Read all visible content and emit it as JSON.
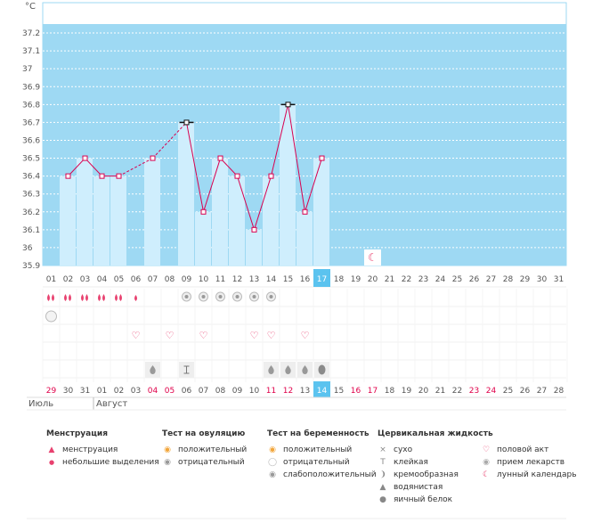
{
  "chart_data": {
    "type": "line",
    "unit_label": "°C",
    "ylim": [
      35.9,
      37.25
    ],
    "y_ticks": [
      "37.2",
      "37.1",
      "37",
      "36.9",
      "36.8",
      "36.7",
      "36.6",
      "36.5",
      "36.4",
      "36.3",
      "36.2",
      "36.1",
      "36",
      "35.9"
    ],
    "day_labels": [
      "01",
      "02",
      "03",
      "04",
      "05",
      "06",
      "07",
      "08",
      "09",
      "10",
      "11",
      "12",
      "13",
      "14",
      "15",
      "16",
      "17",
      "18",
      "19",
      "20",
      "21",
      "22",
      "23",
      "24",
      "25",
      "26",
      "27",
      "28",
      "29",
      "30",
      "31"
    ],
    "highlight_day": "17",
    "temperatures": [
      null,
      36.4,
      36.5,
      36.4,
      36.4,
      null,
      36.5,
      null,
      36.7,
      36.2,
      36.5,
      36.4,
      36.1,
      36.4,
      36.8,
      36.2,
      36.5,
      null,
      null,
      null,
      null,
      null,
      null,
      null,
      null,
      null,
      null,
      null,
      null,
      null,
      null
    ],
    "marker_style": [
      "",
      "sq",
      "sq",
      "sq",
      "sq",
      "",
      "sq",
      "",
      "bar",
      "sq",
      "sq",
      "sq",
      "sq",
      "sq",
      "bar",
      "sq",
      "sq",
      "",
      "",
      "",
      "",
      "",
      "",
      "",
      "",
      "",
      "",
      "",
      "",
      "",
      ""
    ],
    "dashed_gaps": [
      [
        4,
        6
      ],
      [
        6,
        8
      ]
    ],
    "moon_day_index": 19,
    "menstruation_row": [
      "big",
      "big",
      "big",
      "big",
      "big",
      "small",
      "",
      "",
      "",
      "",
      "",
      "",
      "",
      "",
      "",
      "",
      "",
      "",
      "",
      "",
      "",
      "",
      "",
      "",
      "",
      "",
      "",
      "",
      "",
      "",
      ""
    ],
    "ovulation_test_row": [
      "",
      "",
      "",
      "",
      "",
      "",
      "",
      "",
      "neg",
      "neg",
      "neg",
      "neg",
      "neg",
      "neg",
      "",
      "",
      "",
      "",
      "",
      "",
      "",
      "",
      "",
      "",
      "",
      "",
      "",
      "",
      "",
      "",
      ""
    ],
    "pregnancy_test_row": [
      "neg",
      "",
      "",
      "",
      "",
      "",
      "",
      "",
      "",
      "",
      "",
      "",
      "",
      "",
      "",
      "",
      "",
      "",
      "",
      "",
      "",
      "",
      "",
      "",
      "",
      "",
      "",
      "",
      "",
      "",
      ""
    ],
    "intercourse_row": [
      "",
      "",
      "",
      "",
      "",
      "heart",
      "",
      "heart",
      "",
      "heart",
      "",
      "",
      "heart",
      "heart",
      "",
      "heart",
      "",
      "",
      "",
      "",
      "",
      "",
      "",
      "",
      "",
      "",
      "",
      "",
      "",
      "",
      ""
    ],
    "fluid_row": [
      "",
      "",
      "",
      "",
      "",
      "",
      "watery",
      "",
      "sticky",
      "",
      "",
      "",
      "",
      "watery",
      "watery",
      "watery",
      "eggwhite",
      "",
      "",
      "",
      "",
      "",
      "",
      "",
      "",
      "",
      "",
      "",
      "",
      "",
      ""
    ],
    "cycle_days": [
      "29",
      "30",
      "31",
      "01",
      "02",
      "03",
      "04",
      "05",
      "06",
      "07",
      "08",
      "09",
      "10",
      "11",
      "12",
      "13",
      "14",
      "15",
      "16",
      "17",
      "18",
      "19",
      "20",
      "21",
      "22",
      "23",
      "24",
      "25",
      "26",
      "27",
      "28"
    ],
    "cycle_days_red": [
      0,
      6,
      7,
      13,
      14,
      18,
      19,
      25,
      26
    ],
    "cycle_day_highlight": 16,
    "month_labels": [
      "Июль",
      "Август"
    ],
    "colors": {
      "plot_bg": "#9ed9f3",
      "bar_fill": "#cfeefd",
      "line": "#d9004f",
      "highlight": "#5bc3ef",
      "red_text": "#e0004a",
      "gray_icon": "#9a9a9a",
      "pink": "#e8416f"
    }
  },
  "legend": {
    "menstruation": {
      "title": "Менструация",
      "items": [
        "менструация",
        "небольшие выделения"
      ]
    },
    "ovulation": {
      "title": "Тест на овуляцию",
      "items": [
        "положительный",
        "отрицательный"
      ]
    },
    "pregnancy": {
      "title": "Тест на беременность",
      "items": [
        "положительный",
        "отрицательный",
        "слабоположительный"
      ]
    },
    "fluid": {
      "title": "Цервикальная жидкость",
      "items": [
        "сухо",
        "клейкая",
        "кремообразная",
        "водянистая",
        "яичный белок"
      ]
    },
    "other": {
      "items": [
        "половой акт",
        "прием лекарств",
        "лунный календарь"
      ]
    }
  }
}
